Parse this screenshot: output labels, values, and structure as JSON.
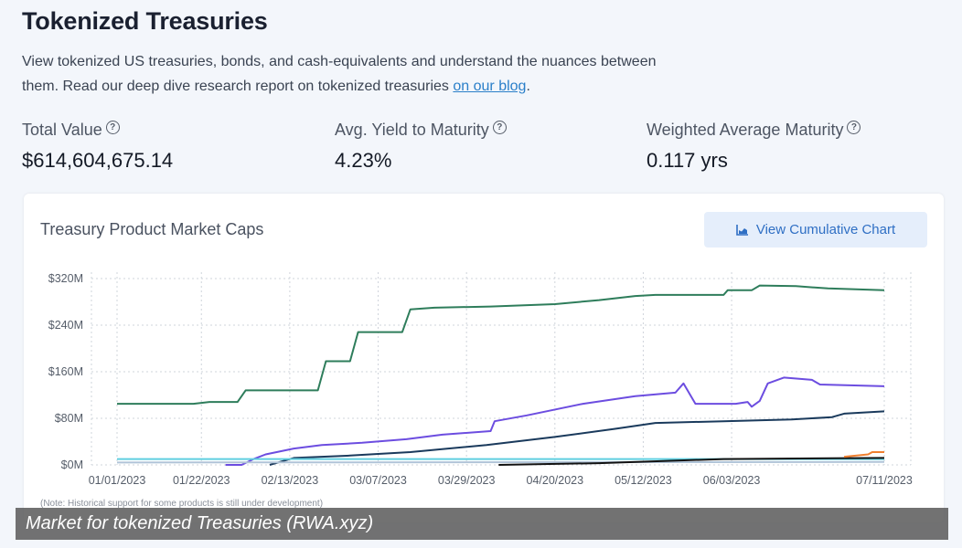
{
  "header": {
    "title": "Tokenized Treasuries",
    "intro_text": "View tokenized US treasuries, bonds, and cash-equivalents and understand the nuances between them. Read our deep dive research report on tokenized treasuries ",
    "blog_link": "on our blog",
    "intro_end": "."
  },
  "stats": [
    {
      "label": "Total Value",
      "value": "$614,604,675.14"
    },
    {
      "label": "Avg. Yield to Maturity",
      "value": "4.23%"
    },
    {
      "label": "Weighted Average Maturity",
      "value": "0.117 yrs"
    }
  ],
  "chart_card": {
    "title": "Treasury Product Market Caps",
    "button_label": "View Cumulative Chart",
    "note": "(Note: Historical support for some products is still under development)"
  },
  "caption": "Market for tokenized Treasuries (RWA.xyz)",
  "chart_data": {
    "type": "line",
    "title": "Treasury Product Market Caps",
    "x_ticks": [
      "01/01/2023",
      "01/22/2023",
      "02/13/2023",
      "03/07/2023",
      "03/29/2023",
      "04/20/2023",
      "05/12/2023",
      "06/03/2023",
      "07/11/2023"
    ],
    "y_ticks": [
      "$0M",
      "$80M",
      "$160M",
      "$240M",
      "$320M"
    ],
    "ylim": [
      0,
      320
    ],
    "grid": true,
    "series": [
      {
        "color": "#2e7d5b",
        "points": [
          [
            "01/01/2023",
            105
          ],
          [
            "01/20/2023",
            105
          ],
          [
            "01/24/2023",
            108
          ],
          [
            "01/31/2023",
            108
          ],
          [
            "02/02/2023",
            128
          ],
          [
            "02/20/2023",
            128
          ],
          [
            "02/22/2023",
            178
          ],
          [
            "02/28/2023",
            178
          ],
          [
            "03/02/2023",
            228
          ],
          [
            "03/13/2023",
            228
          ],
          [
            "03/15/2023",
            267
          ],
          [
            "03/21/2023",
            270
          ],
          [
            "04/04/2023",
            272
          ],
          [
            "04/20/2023",
            276
          ],
          [
            "05/01/2023",
            283
          ],
          [
            "05/10/2023",
            290
          ],
          [
            "05/15/2023",
            292
          ],
          [
            "06/01/2023",
            292
          ],
          [
            "06/02/2023",
            300
          ],
          [
            "06/08/2023",
            300
          ],
          [
            "06/10/2023",
            308
          ],
          [
            "06/19/2023",
            307
          ],
          [
            "06/27/2023",
            303
          ],
          [
            "07/11/2023",
            300
          ]
        ]
      },
      {
        "color": "#6c4de0",
        "points": [
          [
            "01/28/2023",
            0
          ],
          [
            "02/01/2023",
            0
          ],
          [
            "02/04/2023",
            10
          ],
          [
            "02/07/2023",
            18
          ],
          [
            "02/14/2023",
            28
          ],
          [
            "02/21/2023",
            34
          ],
          [
            "03/03/2023",
            38
          ],
          [
            "03/14/2023",
            44
          ],
          [
            "03/23/2023",
            52
          ],
          [
            "04/04/2023",
            58
          ],
          [
            "04/05/2023",
            75
          ],
          [
            "04/13/2023",
            85
          ],
          [
            "04/27/2023",
            105
          ],
          [
            "05/10/2023",
            118
          ],
          [
            "05/20/2023",
            124
          ],
          [
            "05/22/2023",
            140
          ],
          [
            "05/25/2023",
            105
          ],
          [
            "06/04/2023",
            105
          ],
          [
            "06/07/2023",
            108
          ],
          [
            "06/08/2023",
            100
          ],
          [
            "06/10/2023",
            110
          ],
          [
            "06/12/2023",
            140
          ],
          [
            "06/16/2023",
            150
          ],
          [
            "06/23/2023",
            146
          ],
          [
            "06/25/2023",
            138
          ],
          [
            "07/11/2023",
            135
          ]
        ]
      },
      {
        "color": "#1a3a5c",
        "points": [
          [
            "02/08/2023",
            0
          ],
          [
            "02/14/2023",
            12
          ],
          [
            "02/28/2023",
            16
          ],
          [
            "03/15/2023",
            22
          ],
          [
            "04/03/2023",
            34
          ],
          [
            "04/20/2023",
            48
          ],
          [
            "05/05/2023",
            62
          ],
          [
            "05/15/2023",
            72
          ],
          [
            "06/01/2023",
            75
          ],
          [
            "06/18/2023",
            78
          ],
          [
            "06/28/2023",
            82
          ],
          [
            "07/01/2023",
            88
          ],
          [
            "07/11/2023",
            92
          ]
        ]
      },
      {
        "color": "#5fcfe0",
        "points": [
          [
            "01/01/2023",
            10
          ],
          [
            "07/11/2023",
            10
          ]
        ]
      },
      {
        "color": "#b0c4d8",
        "points": [
          [
            "01/01/2023",
            4
          ],
          [
            "07/11/2023",
            5
          ]
        ]
      },
      {
        "color": "#111111",
        "points": [
          [
            "04/06/2023",
            0
          ],
          [
            "05/01/2023",
            3
          ],
          [
            "06/01/2023",
            10
          ],
          [
            "07/11/2023",
            12
          ]
        ]
      },
      {
        "color": "#f08030",
        "points": [
          [
            "07/01/2023",
            14
          ],
          [
            "07/07/2023",
            18
          ],
          [
            "07/08/2023",
            22
          ],
          [
            "07/11/2023",
            22
          ]
        ]
      }
    ]
  }
}
